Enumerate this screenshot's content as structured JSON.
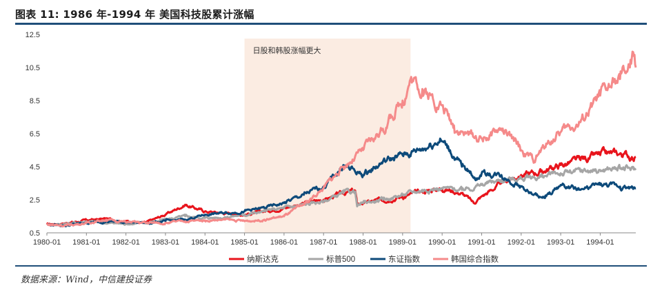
{
  "header": {
    "title": "图表 11: 1986 年-1994 年 美国科技股累计涨幅"
  },
  "footer": {
    "source": "数据来源：Wind，中信建投证券"
  },
  "chart_data": {
    "type": "line",
    "title": "图表 11: 1986 年-1994 年 美国科技股累计涨幅",
    "xlabel": "",
    "ylabel": "",
    "xlim": [
      1980.0,
      1994.9
    ],
    "ylim": [
      0.5,
      12.5
    ],
    "yticks": [
      0.5,
      2.5,
      4.5,
      6.5,
      8.5,
      10.5,
      12.5
    ],
    "ytick_labels": [
      "0.5",
      "2.5",
      "4.5",
      "6.5",
      "8.5",
      "10.5",
      "12.5"
    ],
    "xticks": [
      1980,
      1981,
      1982,
      1983,
      1984,
      1985,
      1986,
      1987,
      1988,
      1989,
      1990,
      1991,
      1992,
      1993,
      1994
    ],
    "xtick_labels": [
      "1980-01",
      "1981-01",
      "1982-01",
      "1983-01",
      "1984-01",
      "1985-01",
      "1986-01",
      "1987-01",
      "1988-01",
      "1989-01",
      "1990-01",
      "1991-01",
      "1992-01",
      "1993-01",
      "1994-01"
    ],
    "grid": false,
    "legend_position": "bottom",
    "shaded_region": {
      "x_start": 1985.0,
      "x_end": 1989.2,
      "color": "#fbece2",
      "label": "日股和韩股涨幅更大"
    },
    "series": [
      {
        "name": "纳斯达克",
        "color": "#e8141c",
        "x": [
          1980.0,
          1980.5,
          1981.0,
          1981.5,
          1982.0,
          1982.5,
          1983.0,
          1983.5,
          1984.0,
          1984.5,
          1985.0,
          1985.5,
          1986.0,
          1986.5,
          1987.0,
          1987.5,
          1987.8,
          1987.85,
          1988.0,
          1988.5,
          1989.0,
          1989.5,
          1990.0,
          1990.5,
          1990.8,
          1991.0,
          1991.5,
          1992.0,
          1992.5,
          1993.0,
          1993.5,
          1994.0,
          1994.5,
          1994.9
        ],
        "y": [
          1.0,
          1.1,
          1.25,
          1.35,
          1.2,
          1.1,
          1.6,
          2.2,
          1.8,
          1.7,
          1.6,
          1.8,
          2.0,
          2.3,
          2.5,
          2.9,
          3.05,
          2.2,
          2.3,
          2.5,
          2.7,
          3.0,
          3.2,
          2.9,
          2.3,
          2.7,
          3.5,
          4.0,
          4.2,
          4.6,
          4.9,
          5.2,
          5.3,
          5.1
        ]
      },
      {
        "name": "标普500",
        "color": "#a6a6a6",
        "x": [
          1980.0,
          1980.5,
          1981.0,
          1981.5,
          1982.0,
          1982.5,
          1983.0,
          1983.5,
          1984.0,
          1984.5,
          1985.0,
          1985.5,
          1986.0,
          1986.5,
          1987.0,
          1987.5,
          1987.8,
          1987.85,
          1988.0,
          1988.5,
          1989.0,
          1989.5,
          1990.0,
          1990.5,
          1991.0,
          1991.5,
          1992.0,
          1992.5,
          1993.0,
          1993.5,
          1994.0,
          1994.5,
          1994.9
        ],
        "y": [
          1.0,
          1.05,
          1.2,
          1.1,
          1.05,
          1.1,
          1.3,
          1.5,
          1.4,
          1.45,
          1.6,
          1.8,
          2.0,
          2.2,
          2.4,
          2.9,
          3.0,
          2.1,
          2.3,
          2.5,
          2.8,
          3.1,
          3.2,
          3.1,
          3.4,
          3.7,
          3.8,
          3.9,
          4.1,
          4.2,
          4.3,
          4.4,
          4.3
        ]
      },
      {
        "name": "东证指数",
        "color": "#0d4a7a",
        "x": [
          1980.0,
          1980.5,
          1981.0,
          1981.5,
          1982.0,
          1982.5,
          1983.0,
          1983.5,
          1984.0,
          1984.5,
          1985.0,
          1985.5,
          1986.0,
          1986.5,
          1987.0,
          1987.3,
          1987.5,
          1987.8,
          1988.0,
          1988.5,
          1989.0,
          1989.5,
          1989.95,
          1990.2,
          1990.5,
          1990.9,
          1991.0,
          1991.5,
          1992.0,
          1992.3,
          1992.6,
          1993.0,
          1993.5,
          1994.0,
          1994.5,
          1994.9
        ],
        "y": [
          1.0,
          0.95,
          1.1,
          1.2,
          1.15,
          1.1,
          1.2,
          1.3,
          1.6,
          1.7,
          1.8,
          2.0,
          2.3,
          2.8,
          3.3,
          4.0,
          4.6,
          4.2,
          4.0,
          4.8,
          5.2,
          5.6,
          6.2,
          5.5,
          4.5,
          3.8,
          4.1,
          4.0,
          3.3,
          2.8,
          2.6,
          3.4,
          3.1,
          3.4,
          3.3,
          3.2
        ]
      },
      {
        "name": "韩国综合指数",
        "color": "#f58a8a",
        "x": [
          1980.0,
          1980.5,
          1981.0,
          1981.5,
          1982.0,
          1982.5,
          1983.0,
          1983.5,
          1984.0,
          1984.5,
          1985.0,
          1985.5,
          1986.0,
          1986.5,
          1987.0,
          1987.5,
          1988.0,
          1988.5,
          1989.0,
          1989.2,
          1989.5,
          1990.0,
          1990.3,
          1990.6,
          1991.0,
          1991.5,
          1992.0,
          1992.3,
          1992.7,
          1993.0,
          1993.5,
          1994.0,
          1994.5,
          1994.75,
          1994.85,
          1994.9
        ],
        "y": [
          1.0,
          0.95,
          1.1,
          1.3,
          1.15,
          1.1,
          1.1,
          1.2,
          1.25,
          1.3,
          1.2,
          1.3,
          1.5,
          2.2,
          3.2,
          4.5,
          5.5,
          6.8,
          8.5,
          9.8,
          9.2,
          8.2,
          7.0,
          6.5,
          6.2,
          6.8,
          5.5,
          4.9,
          6.0,
          6.6,
          7.2,
          8.8,
          9.8,
          10.5,
          11.2,
          10.5
        ]
      }
    ]
  }
}
